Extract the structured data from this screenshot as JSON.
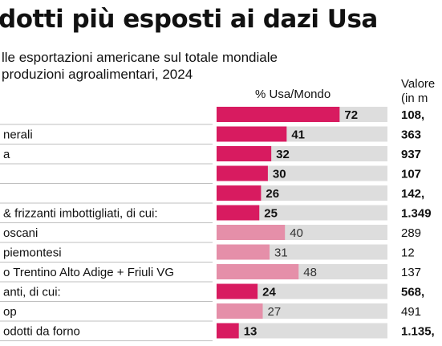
{
  "header": {
    "title": "dotti più esposti ai dazi Usa",
    "subtitle_line1": "lle esportazioni americane sul totale mondiale",
    "subtitle_line2": "produzioni agroalimentari, 2024"
  },
  "columns": {
    "pct_header": "% Usa/Mondo",
    "val_header_line1": "Valore",
    "val_header_line2": "(in m"
  },
  "colors": {
    "primary_bar": "#d81b60",
    "secondary_bar": "#e58fa9",
    "track": "#dddddd",
    "divider": "#aaaaaa"
  },
  "chart_data": {
    "type": "bar",
    "orientation": "horizontal",
    "xlim": [
      0,
      100
    ],
    "categories": [
      "",
      "nerali",
      "a",
      "",
      "",
      "& frizzanti imbottigliati, di cui:",
      "oscani",
      "piemontesi",
      "o Trentino Alto Adige + Friuli VG",
      "anti, di cui:",
      "op",
      "odotti da forno"
    ],
    "values": [
      72,
      41,
      32,
      30,
      26,
      25,
      40,
      31,
      48,
      24,
      27,
      13
    ],
    "bar_style": [
      "primary",
      "primary",
      "primary",
      "primary",
      "primary",
      "primary",
      "secondary",
      "secondary",
      "secondary",
      "primary",
      "secondary",
      "primary"
    ],
    "value_labels": [
      "72",
      "41",
      "32",
      "30",
      "26",
      "25",
      "40",
      "31",
      "48",
      "24",
      "27",
      "13"
    ],
    "export_values": [
      "108,",
      "363",
      "937",
      "107",
      "142,",
      "1.349",
      "289",
      "12",
      "137",
      "568,",
      "491",
      "1.135,"
    ],
    "export_bold": [
      true,
      true,
      true,
      true,
      true,
      true,
      false,
      false,
      false,
      true,
      false,
      true
    ]
  }
}
